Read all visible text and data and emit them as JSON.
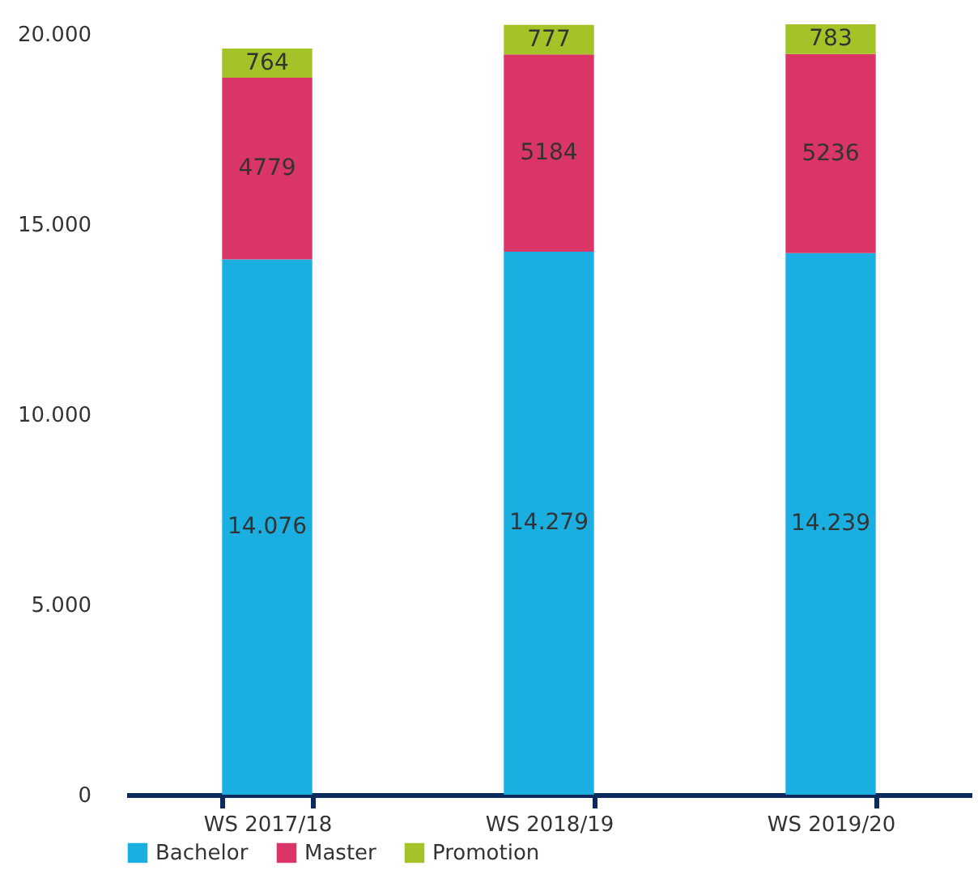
{
  "chart_data": {
    "type": "bar",
    "stacked": true,
    "categories": [
      "WS 2017/18",
      "WS 2018/19",
      "WS 2019/20"
    ],
    "series": [
      {
        "name": "Bachelor",
        "color": "#1aafe0",
        "values": [
          14076,
          14279,
          14239
        ],
        "value_labels": [
          "14.076",
          "14.279",
          "14.239"
        ]
      },
      {
        "name": "Master",
        "color": "#d93566",
        "values": [
          4779,
          5184,
          5236
        ],
        "value_labels": [
          "4779",
          "5184",
          "5236"
        ]
      },
      {
        "name": "Promotion",
        "color": "#a4c328",
        "values": [
          764,
          777,
          783
        ],
        "value_labels": [
          "764",
          "777",
          "783"
        ]
      }
    ],
    "ylim": [
      0,
      20300
    ],
    "yticks": [
      {
        "value": 0,
        "label": "0"
      },
      {
        "value": 5000,
        "label": "5.000"
      },
      {
        "value": 10000,
        "label": "10.000"
      },
      {
        "value": 15000,
        "label": "15.000"
      },
      {
        "value": 20000,
        "label": "20.000"
      }
    ],
    "grid": false,
    "legend": "bottom"
  }
}
